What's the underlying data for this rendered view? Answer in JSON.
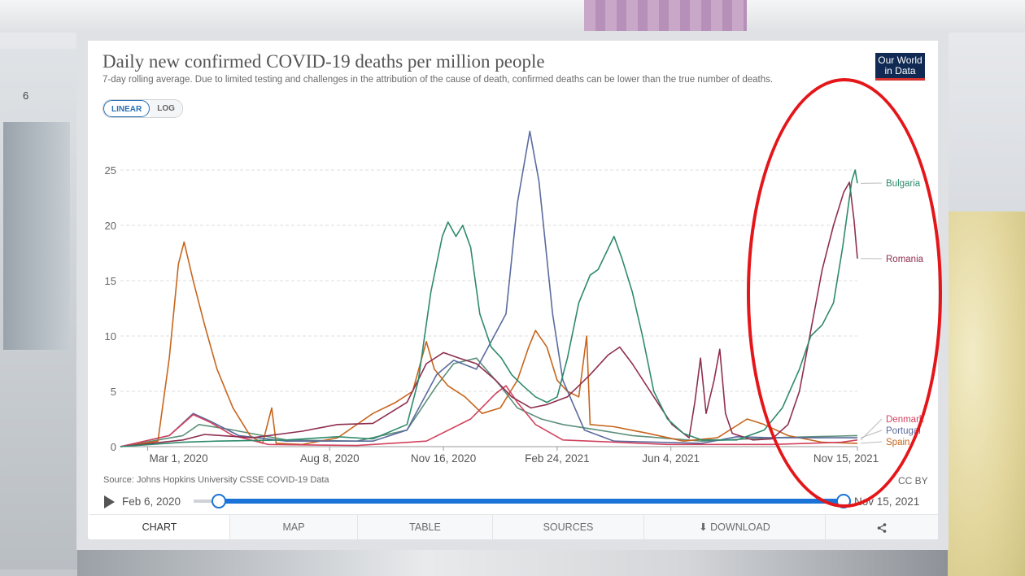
{
  "header": {
    "title": "Daily new confirmed COVID-19 deaths per million people",
    "subtitle": "7-day rolling average. Due to limited testing and challenges in the attribution of the cause of death, confirmed deaths can be lower than the true number of deaths.",
    "logo_line1": "Our World",
    "logo_line2": "in Data"
  },
  "scale_toggle": {
    "linear": "LINEAR",
    "log": "LOG",
    "selected": "LINEAR"
  },
  "background_text": {
    "door_number": "6"
  },
  "footer": {
    "source": "Source: Johns Hopkins University CSSE COVID-19 Data",
    "license": "CC BY"
  },
  "timeline": {
    "start_label": "Feb 6, 2020",
    "end_label": "Nov 15, 2021"
  },
  "tabs": [
    {
      "label": "CHART",
      "active": true
    },
    {
      "label": "MAP",
      "active": false
    },
    {
      "label": "TABLE",
      "active": false
    },
    {
      "label": "SOURCES",
      "active": false
    },
    {
      "label": "DOWNLOAD",
      "active": false,
      "icon": "download-icon"
    },
    {
      "label": "",
      "active": false,
      "icon": "share-icon"
    }
  ],
  "colors": {
    "Bulgaria": "#2e8a6d",
    "Romania": "#8e2f4f",
    "Denmark": "#d1425e",
    "Portugal": "#5b6b9e",
    "Spain": "#c7651c",
    "Extra": "#5c8f7a",
    "highlight_ring": "#e4161a"
  },
  "chart_data": {
    "type": "line",
    "title": "Daily new confirmed COVID-19 deaths per million people",
    "ylabel": "",
    "xlabel": "",
    "ylim": [
      0,
      28
    ],
    "yticks": [
      0,
      5,
      10,
      15,
      20,
      25
    ],
    "xlim": [
      "2020-02-06",
      "2021-11-15"
    ],
    "xticks": [
      {
        "date": "2020-03-01",
        "label": "Mar 1, 2020"
      },
      {
        "date": "2020-08-08",
        "label": "Aug 8, 2020"
      },
      {
        "date": "2020-11-16",
        "label": "Nov 16, 2020"
      },
      {
        "date": "2021-02-24",
        "label": "Feb 24, 2021"
      },
      {
        "date": "2021-06-04",
        "label": "Jun 4, 2021"
      },
      {
        "date": "2021-11-15",
        "label": "Nov 15, 2021"
      }
    ],
    "grid": "horizontal-dashed",
    "legend_placement": "right end labels",
    "series": [
      {
        "name": "Bulgaria",
        "points": [
          [
            "2020-02-06",
            0
          ],
          [
            "2020-04-01",
            0.4
          ],
          [
            "2020-05-01",
            0.5
          ],
          [
            "2020-07-01",
            0.6
          ],
          [
            "2020-08-15",
            0.9
          ],
          [
            "2020-09-15",
            0.7
          ],
          [
            "2020-10-15",
            2.0
          ],
          [
            "2020-10-25",
            6.0
          ],
          [
            "2020-11-05",
            14.0
          ],
          [
            "2020-11-15",
            19.0
          ],
          [
            "2020-11-20",
            20.3
          ],
          [
            "2020-11-27",
            19.0
          ],
          [
            "2020-12-03",
            20.0
          ],
          [
            "2020-12-10",
            18.0
          ],
          [
            "2020-12-18",
            12.0
          ],
          [
            "2020-12-28",
            9.0
          ],
          [
            "2021-01-06",
            8.0
          ],
          [
            "2021-01-15",
            6.5
          ],
          [
            "2021-01-25",
            5.5
          ],
          [
            "2021-02-05",
            4.5
          ],
          [
            "2021-02-15",
            4.0
          ],
          [
            "2021-02-24",
            4.5
          ],
          [
            "2021-03-05",
            8.0
          ],
          [
            "2021-03-15",
            13.0
          ],
          [
            "2021-03-25",
            15.5
          ],
          [
            "2021-04-01",
            16.0
          ],
          [
            "2021-04-08",
            17.5
          ],
          [
            "2021-04-15",
            19.0
          ],
          [
            "2021-04-22",
            17.0
          ],
          [
            "2021-05-01",
            14.0
          ],
          [
            "2021-05-10",
            10.0
          ],
          [
            "2021-05-20",
            5.0
          ],
          [
            "2021-06-01",
            2.5
          ],
          [
            "2021-06-15",
            1.2
          ],
          [
            "2021-07-01",
            0.6
          ],
          [
            "2021-08-01",
            0.6
          ],
          [
            "2021-08-25",
            1.5
          ],
          [
            "2021-09-10",
            3.5
          ],
          [
            "2021-09-25",
            7.0
          ],
          [
            "2021-10-05",
            10.0
          ],
          [
            "2021-10-15",
            11.0
          ],
          [
            "2021-10-25",
            13.0
          ],
          [
            "2021-11-02",
            18.0
          ],
          [
            "2021-11-10",
            24.0
          ],
          [
            "2021-11-13",
            25.0
          ],
          [
            "2021-11-15",
            23.8
          ]
        ]
      },
      {
        "name": "Romania",
        "points": [
          [
            "2020-02-06",
            0
          ],
          [
            "2020-04-01",
            0.6
          ],
          [
            "2020-04-20",
            1.1
          ],
          [
            "2020-06-01",
            0.8
          ],
          [
            "2020-07-15",
            1.4
          ],
          [
            "2020-08-15",
            2.0
          ],
          [
            "2020-09-15",
            2.1
          ],
          [
            "2020-10-15",
            4.0
          ],
          [
            "2020-11-01",
            7.5
          ],
          [
            "2020-11-16",
            8.5
          ],
          [
            "2020-11-30",
            8.0
          ],
          [
            "2020-12-15",
            7.5
          ],
          [
            "2021-01-01",
            6.0
          ],
          [
            "2021-01-15",
            4.5
          ],
          [
            "2021-02-01",
            3.5
          ],
          [
            "2021-02-15",
            3.8
          ],
          [
            "2021-03-05",
            4.5
          ],
          [
            "2021-03-25",
            6.5
          ],
          [
            "2021-04-10",
            8.3
          ],
          [
            "2021-04-20",
            9.0
          ],
          [
            "2021-05-01",
            7.5
          ],
          [
            "2021-05-20",
            4.5
          ],
          [
            "2021-06-05",
            2.0
          ],
          [
            "2021-06-20",
            0.8
          ],
          [
            "2021-06-25",
            4.0
          ],
          [
            "2021-06-30",
            8.0
          ],
          [
            "2021-07-05",
            3.0
          ],
          [
            "2021-07-12",
            6.0
          ],
          [
            "2021-07-17",
            8.8
          ],
          [
            "2021-07-22",
            3.0
          ],
          [
            "2021-07-28",
            1.2
          ],
          [
            "2021-08-15",
            0.6
          ],
          [
            "2021-09-01",
            0.7
          ],
          [
            "2021-09-15",
            2.0
          ],
          [
            "2021-09-25",
            5.0
          ],
          [
            "2021-10-05",
            10.5
          ],
          [
            "2021-10-15",
            16.0
          ],
          [
            "2021-10-25",
            20.0
          ],
          [
            "2021-11-03",
            23.0
          ],
          [
            "2021-11-08",
            23.9
          ],
          [
            "2021-11-12",
            20.5
          ],
          [
            "2021-11-15",
            17.0
          ]
        ]
      },
      {
        "name": "Denmark",
        "points": [
          [
            "2020-02-06",
            0
          ],
          [
            "2020-03-20",
            1.0
          ],
          [
            "2020-04-10",
            2.9
          ],
          [
            "2020-04-25",
            2.2
          ],
          [
            "2020-05-15",
            1.0
          ],
          [
            "2020-06-15",
            0.2
          ],
          [
            "2020-09-01",
            0.1
          ],
          [
            "2020-11-01",
            0.5
          ],
          [
            "2020-12-10",
            2.5
          ],
          [
            "2021-01-01",
            4.8
          ],
          [
            "2021-01-10",
            5.5
          ],
          [
            "2021-01-20",
            4.0
          ],
          [
            "2021-02-05",
            2.0
          ],
          [
            "2021-03-01",
            0.6
          ],
          [
            "2021-06-01",
            0.2
          ],
          [
            "2021-09-01",
            0.2
          ],
          [
            "2021-11-01",
            0.4
          ],
          [
            "2021-11-15",
            0.6
          ]
        ]
      },
      {
        "name": "Portugal",
        "points": [
          [
            "2020-02-06",
            0
          ],
          [
            "2020-03-20",
            1.0
          ],
          [
            "2020-04-10",
            3.0
          ],
          [
            "2020-04-25",
            2.3
          ],
          [
            "2020-05-20",
            1.0
          ],
          [
            "2020-07-01",
            0.5
          ],
          [
            "2020-09-15",
            0.5
          ],
          [
            "2020-10-15",
            1.5
          ],
          [
            "2020-11-10",
            6.5
          ],
          [
            "2020-11-25",
            7.8
          ],
          [
            "2020-12-15",
            7.0
          ],
          [
            "2021-01-10",
            12.0
          ],
          [
            "2021-01-20",
            22.0
          ],
          [
            "2021-01-31",
            28.5
          ],
          [
            "2021-02-08",
            24.0
          ],
          [
            "2021-02-20",
            12.0
          ],
          [
            "2021-03-01",
            6.0
          ],
          [
            "2021-03-20",
            1.5
          ],
          [
            "2021-04-15",
            0.5
          ],
          [
            "2021-07-01",
            0.3
          ],
          [
            "2021-08-01",
            0.9
          ],
          [
            "2021-09-01",
            0.8
          ],
          [
            "2021-11-15",
            0.8
          ]
        ]
      },
      {
        "name": "Spain",
        "points": [
          [
            "2020-02-06",
            0
          ],
          [
            "2020-03-10",
            0.5
          ],
          [
            "2020-03-20",
            8.0
          ],
          [
            "2020-03-28",
            16.5
          ],
          [
            "2020-04-02",
            18.5
          ],
          [
            "2020-04-10",
            15.0
          ],
          [
            "2020-04-20",
            11.0
          ],
          [
            "2020-05-01",
            7.0
          ],
          [
            "2020-05-15",
            3.5
          ],
          [
            "2020-05-30",
            1.0
          ],
          [
            "2020-06-10",
            0.3
          ],
          [
            "2020-06-18",
            3.5
          ],
          [
            "2020-06-22",
            0.3
          ],
          [
            "2020-07-15",
            0.2
          ],
          [
            "2020-08-15",
            0.8
          ],
          [
            "2020-09-15",
            3.0
          ],
          [
            "2020-10-05",
            4.0
          ],
          [
            "2020-10-20",
            5.0
          ],
          [
            "2020-11-01",
            9.5
          ],
          [
            "2020-11-08",
            7.0
          ],
          [
            "2020-11-20",
            5.5
          ],
          [
            "2020-12-05",
            4.5
          ],
          [
            "2020-12-20",
            3.0
          ],
          [
            "2021-01-05",
            3.5
          ],
          [
            "2021-01-20",
            6.0
          ],
          [
            "2021-01-30",
            9.0
          ],
          [
            "2021-02-05",
            10.5
          ],
          [
            "2021-02-15",
            9.0
          ],
          [
            "2021-02-24",
            6.0
          ],
          [
            "2021-03-05",
            5.0
          ],
          [
            "2021-03-15",
            4.5
          ],
          [
            "2021-03-22",
            10.0
          ],
          [
            "2021-03-25",
            2.0
          ],
          [
            "2021-04-15",
            1.8
          ],
          [
            "2021-05-15",
            1.2
          ],
          [
            "2021-06-15",
            0.5
          ],
          [
            "2021-07-15",
            0.8
          ],
          [
            "2021-08-10",
            2.5
          ],
          [
            "2021-08-25",
            2.0
          ],
          [
            "2021-09-15",
            1.0
          ],
          [
            "2021-10-15",
            0.4
          ],
          [
            "2021-11-15",
            0.3
          ]
        ]
      },
      {
        "name": "",
        "points": [
          [
            "2020-02-06",
            0
          ],
          [
            "2020-04-01",
            1.0
          ],
          [
            "2020-04-15",
            2.0
          ],
          [
            "2020-05-15",
            1.5
          ],
          [
            "2020-07-01",
            0.6
          ],
          [
            "2020-09-01",
            0.5
          ],
          [
            "2020-10-15",
            1.5
          ],
          [
            "2020-11-10",
            5.5
          ],
          [
            "2020-11-25",
            7.5
          ],
          [
            "2020-12-15",
            8.0
          ],
          [
            "2021-01-05",
            5.5
          ],
          [
            "2021-01-20",
            3.5
          ],
          [
            "2021-02-10",
            2.5
          ],
          [
            "2021-03-01",
            2.0
          ],
          [
            "2021-04-01",
            1.5
          ],
          [
            "2021-05-01",
            1.0
          ],
          [
            "2021-07-01",
            0.5
          ],
          [
            "2021-09-01",
            0.8
          ],
          [
            "2021-11-15",
            1.0
          ]
        ]
      }
    ]
  }
}
